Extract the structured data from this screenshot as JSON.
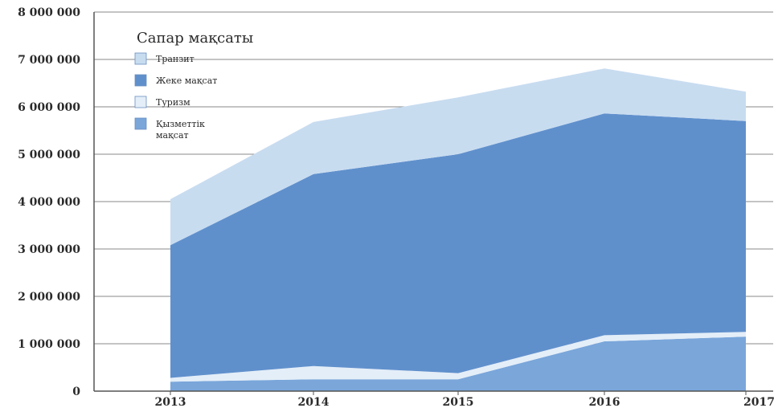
{
  "chart_data": {
    "type": "area",
    "stacked": true,
    "x": [
      "2013",
      "2014",
      "2015",
      "2016",
      "2017"
    ],
    "ylim": [
      0,
      8000000
    ],
    "y_ticks": [
      "0",
      "1 000 000",
      "2 000 000",
      "3 000 000",
      "4 000 000",
      "5 000 000",
      "6 000 000",
      "7 000 000",
      "8 000 000"
    ],
    "grid": "horizontal",
    "legend_position": "top-left",
    "legend_title": "Сапар мақсаты",
    "series": [
      {
        "name": "Қызметтік мақсат",
        "color": "#7aa6da",
        "values": [
          200000,
          250000,
          250000,
          1050000,
          1150000
        ]
      },
      {
        "name": "Туризм",
        "color": "#e4eef8",
        "values": [
          80000,
          280000,
          130000,
          130000,
          100000
        ]
      },
      {
        "name": "Жеке мақсат",
        "color": "#6090cc",
        "values": [
          2800000,
          4050000,
          4620000,
          4680000,
          4450000
        ]
      },
      {
        "name": "Транзит",
        "color": "#c8dcf0",
        "values": [
          970000,
          1100000,
          1200000,
          950000,
          620000
        ]
      }
    ],
    "legend_order": [
      "Транзит",
      "Жеке мақсат",
      "Туризм",
      "Қызметтік мақсат"
    ]
  }
}
